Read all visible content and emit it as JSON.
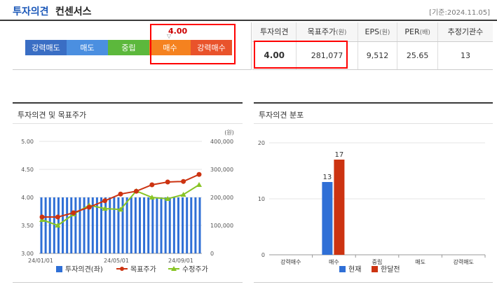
{
  "header": {
    "title_part1": "투자의견",
    "title_part2": "컨센서스",
    "date": "[기준:2024.11.05]"
  },
  "scale": {
    "segments": [
      {
        "label": "강력매도",
        "color": "#3a6ec4"
      },
      {
        "label": "매도",
        "color": "#4b8fe0"
      },
      {
        "label": "중립",
        "color": "#5cb83c"
      },
      {
        "label": "매수",
        "color": "#f5821f"
      },
      {
        "label": "강력매수",
        "color": "#e9532b"
      }
    ],
    "marker_value": "4.00",
    "marker_symbol": "▽"
  },
  "summary": {
    "headers": [
      {
        "label": "투자의견",
        "unit": ""
      },
      {
        "label": "목표주가",
        "unit": "(원)"
      },
      {
        "label": "EPS",
        "unit": "(원)"
      },
      {
        "label": "PER",
        "unit": "(배)"
      },
      {
        "label": "추정기관수",
        "unit": ""
      }
    ],
    "values": [
      "4.00",
      "281,077",
      "9,512",
      "25.65",
      "13"
    ]
  },
  "left_panel": {
    "title": "투자의견 및 목표주가",
    "legend": [
      "투자의견(좌)",
      "목표주가",
      "수정주가"
    ],
    "legend_colors": [
      "#2f6fd6",
      "#cc3311",
      "#88c425"
    ]
  },
  "right_panel": {
    "title": "투자의견 분포",
    "legend": [
      "현재",
      "한달전"
    ],
    "legend_colors": [
      "#2f6fd6",
      "#cc3311"
    ]
  },
  "chart_data": [
    {
      "type": "bar+line",
      "title": "투자의견 및 목표주가",
      "yunit_right": "(원)",
      "y_left_ticks": [
        "5.00",
        "4.50",
        "4.00",
        "3.50",
        "3.00"
      ],
      "y_left_range": [
        3.0,
        5.0
      ],
      "y_right_ticks": [
        "400,000",
        "300,000",
        "200,000",
        "100,000",
        "0"
      ],
      "y_right_range": [
        0,
        400000
      ],
      "x_ticks": [
        "24/01/01",
        "24/05/01",
        "24/09/01"
      ],
      "opinion": [
        4.0,
        4.0,
        4.0,
        4.0,
        4.0,
        4.0,
        4.0,
        4.0,
        4.0,
        4.0,
        4.0,
        4.0,
        4.0,
        4.0,
        4.0,
        4.0,
        4.0,
        4.0,
        4.0,
        4.0,
        4.0,
        4.0,
        4.0,
        4.0,
        4.0,
        4.0,
        4.0,
        4.0,
        4.0,
        4.0,
        4.0,
        4.0,
        4.0,
        4.0,
        4.0,
        4.0,
        4.0,
        4.0
      ],
      "target_price": [
        130000,
        130000,
        145000,
        165000,
        188000,
        212000,
        222000,
        245000,
        255000,
        257000,
        282000
      ],
      "adjusted_price": [
        120000,
        100000,
        140000,
        172000,
        160000,
        157000,
        223000,
        200000,
        195000,
        210000,
        245000
      ],
      "legend": [
        "투자의견(좌)",
        "목표주가",
        "수정주가"
      ]
    },
    {
      "type": "bar",
      "title": "투자의견 분포",
      "categories": [
        "강력매수",
        "매수",
        "중립",
        "매도",
        "강력매도"
      ],
      "series": [
        {
          "name": "현재",
          "values": [
            0,
            13,
            0,
            0,
            0
          ]
        },
        {
          "name": "한달전",
          "values": [
            0,
            17,
            0,
            0,
            0
          ]
        }
      ],
      "y_ticks": [
        "20",
        "10",
        "0"
      ],
      "ylim": [
        0,
        20
      ]
    }
  ]
}
